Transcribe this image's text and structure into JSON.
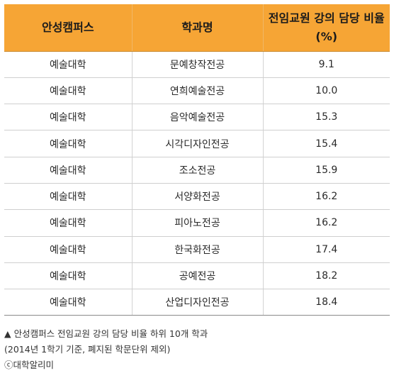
{
  "table": {
    "headers": [
      "안성캠퍼스",
      "학과명",
      "전임교원 강의 담당 비율(%)"
    ],
    "rows": [
      [
        "예술대학",
        "문예창작전공",
        "9.1"
      ],
      [
        "예술대학",
        "연희예술전공",
        "10.0"
      ],
      [
        "예술대학",
        "음악예술전공",
        "15.3"
      ],
      [
        "예술대학",
        "시각디자인전공",
        "15.4"
      ],
      [
        "예술대학",
        "조소전공",
        "15.9"
      ],
      [
        "예술대학",
        "서양화전공",
        "16.2"
      ],
      [
        "예술대학",
        "피아노전공",
        "16.2"
      ],
      [
        "예술대학",
        "한국화전공",
        "17.4"
      ],
      [
        "예술대학",
        "공예전공",
        "18.2"
      ],
      [
        "예술대학",
        "산업디자인전공",
        "18.4"
      ]
    ]
  },
  "notes": {
    "caption": "▲ 안성캠퍼스 전임교원 강의 담당 비율 하위 10개 학과",
    "condition": "(2014년 1학기 기준, 폐지된 학문단위 제외)",
    "source": "ⓒ대학알리미"
  },
  "colors": {
    "header_bg": "#f6a535"
  }
}
